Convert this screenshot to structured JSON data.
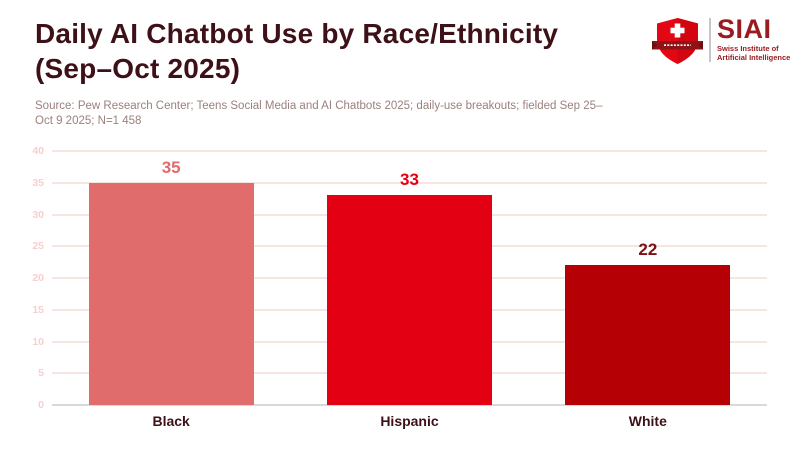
{
  "header": {
    "title_line1": "Daily AI Chatbot Use by Race/Ethnicity",
    "title_line2": "(Sep–Oct 2025)",
    "source_line1": "Source: Pew Research Center; Teens Social Media and AI Chatbots 2025; daily-use breakouts; fielded Sep 25–",
    "source_line2": "Oct 9 2025; N=1 458"
  },
  "logo": {
    "acronym": "SIAI",
    "name_line1": "Swiss Institute of",
    "name_line2": "Artificial Intelligence",
    "shield_icon": "swiss-shield-icon",
    "brand_red": "#e30613",
    "brand_banner_red": "#8e1417",
    "brand_dark_red": "#9a1c20"
  },
  "colors": {
    "background": "#ffffff",
    "title_text": "#3d1117",
    "source_text": "#9a817e",
    "category_label": "#3d1117",
    "tick_label": "#f8cfcf",
    "gridline": "#f8e4e1",
    "baseline": "#d9d9d9"
  },
  "chart_data": {
    "type": "bar",
    "title": "Daily AI Chatbot Use by Race/Ethnicity (Sep–Oct 2025)",
    "categories": [
      "Black",
      "Hispanic",
      "White"
    ],
    "values": [
      35,
      33,
      22
    ],
    "bar_colors": [
      "#e16c6c",
      "#e30013",
      "#b50005"
    ],
    "value_label_colors": [
      "#e16c6c",
      "#e30013",
      "#7d1014"
    ],
    "xlabel": "",
    "ylabel": "",
    "ylim": [
      0,
      40
    ],
    "yticks": [
      0,
      5,
      10,
      15,
      20,
      25,
      30,
      35,
      40
    ],
    "grid": true,
    "legend_position": "none"
  }
}
